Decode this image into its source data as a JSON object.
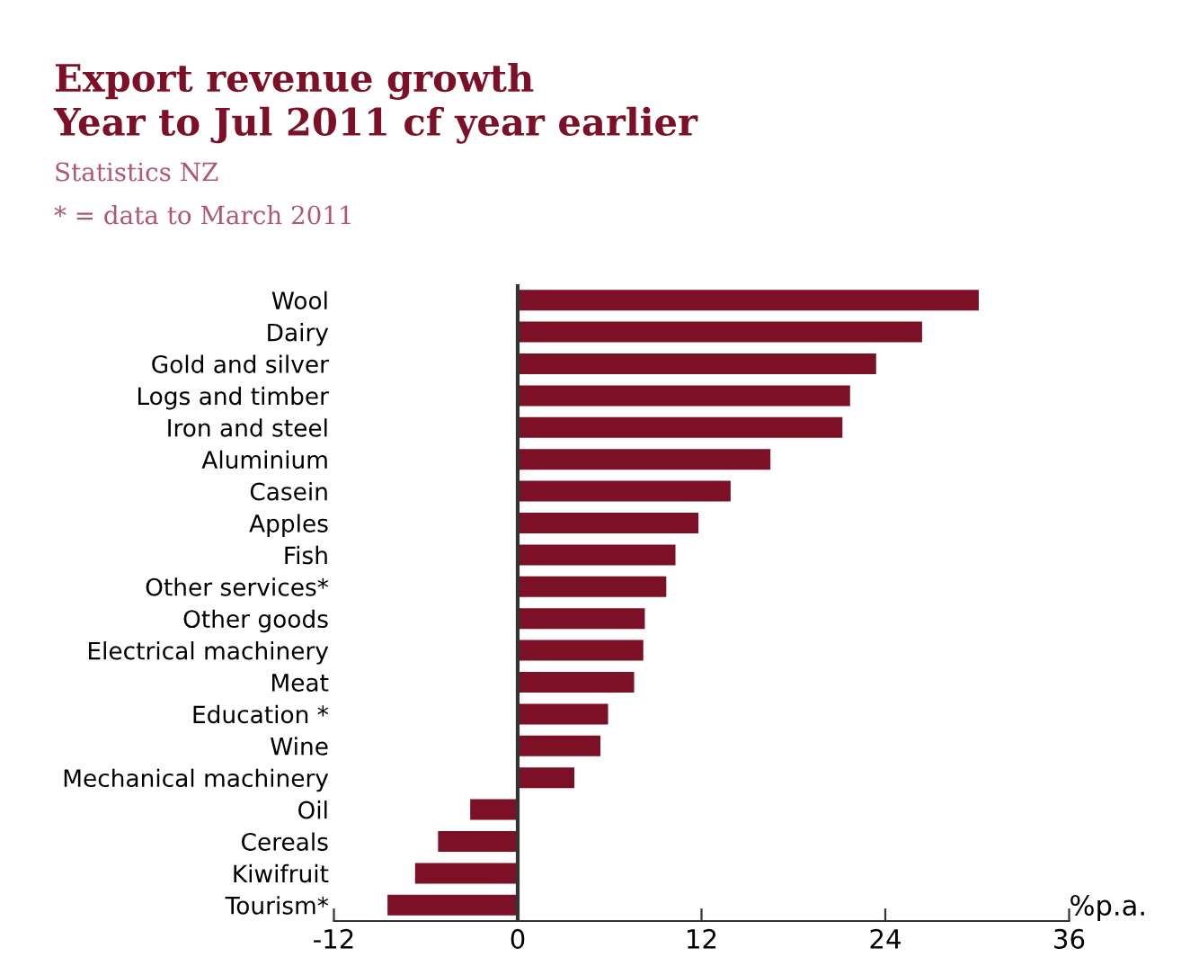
{
  "chart_data": {
    "type": "bar",
    "orientation": "horizontal",
    "title": "Export revenue growth\nYear to Jul 2011 cf year earlier",
    "subtitle": "Statistics NZ",
    "annotations": [
      "* = data to March 2011"
    ],
    "xlabel": "%p.a.",
    "categories": [
      "Wool",
      "Dairy",
      "Gold and silver",
      "Logs and timber",
      "Iron and steel",
      "Aluminium",
      "Casein",
      "Apples",
      "Fish",
      "Other services*",
      "Other goods",
      "Electrical machinery",
      "Meat",
      "Education *",
      "Wine",
      "Mechanical machinery",
      "Oil",
      "Cereals",
      "Kiwifruit",
      "Tourism*"
    ],
    "values": [
      30.1,
      26.4,
      23.4,
      21.7,
      21.2,
      16.5,
      13.9,
      11.8,
      10.3,
      9.7,
      8.3,
      8.2,
      7.6,
      5.9,
      5.4,
      3.7,
      -3.1,
      -5.2,
      -6.7,
      -8.5
    ],
    "color": "#7b1026",
    "xlim": [
      -12,
      36
    ],
    "xticks": [
      -12,
      0,
      12,
      24,
      36
    ],
    "ref_lines": [
      {
        "axis": "x",
        "value": 0,
        "color": "#333333"
      }
    ],
    "grid": false
  }
}
